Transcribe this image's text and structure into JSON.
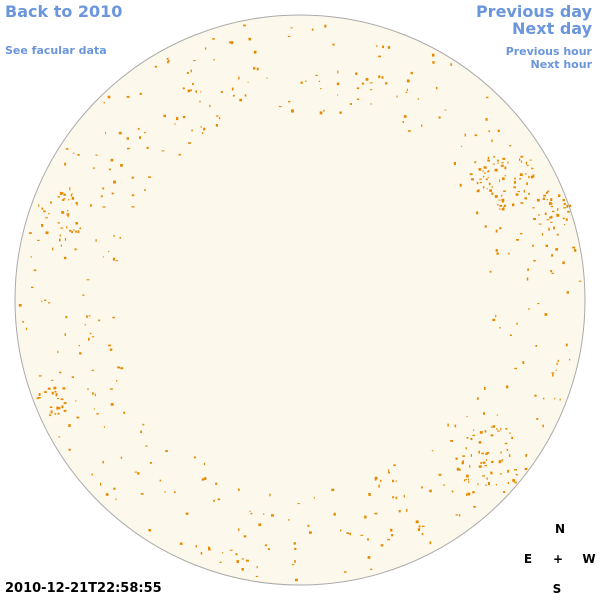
{
  "nav": {
    "back": "Back to 2010",
    "facular": "See facular data",
    "previous_day": "Previous day",
    "next_day": "Next day",
    "previous_hour": "Previous hour",
    "next_hour": "Next hour"
  },
  "timestamp": "2010-12-21T22:58:55",
  "compass": {
    "north": "N",
    "east": "E",
    "center": "+",
    "west": "W",
    "south": "S"
  }
}
